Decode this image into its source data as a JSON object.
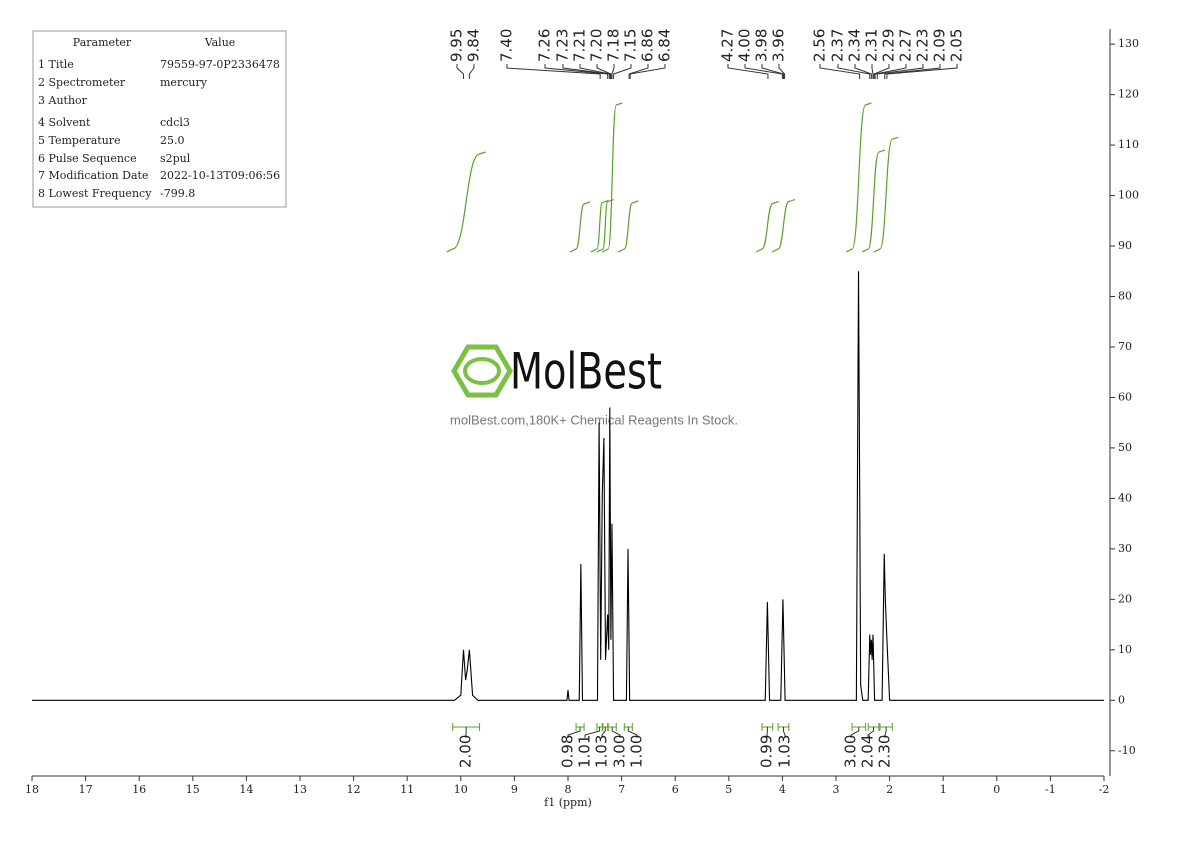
{
  "parameters": {
    "header": [
      "Parameter",
      "Value"
    ],
    "rows": [
      [
        "1 Title",
        "79559-97-0P2336478"
      ],
      [
        "2 Spectrometer",
        "mercury"
      ],
      [
        "3 Author"
      ],
      [
        "4 Solvent",
        "cdcl3"
      ],
      [
        "5 Temperature",
        "25.0"
      ],
      [
        "6 Pulse Sequence",
        "s2pul"
      ],
      [
        "7 Modification Date",
        "2022-10-13T09:06:56"
      ],
      [
        "8 Lowest Frequency",
        "-799.8"
      ]
    ]
  },
  "watermark": {
    "title": "MolBest",
    "subtitle": "molBest.com,180K+ Chemical Reagents In Stock."
  },
  "chart_data": {
    "type": "line",
    "x_label": "f1 (ppm)",
    "color": "#000000",
    "integral_color": "#5aa02c",
    "x": [
      18,
      10.12,
      10.0,
      9.95,
      9.91,
      9.88,
      9.84,
      9.78,
      9.68,
      8.02,
      8.0,
      7.98,
      7.79,
      7.76,
      7.73,
      7.45,
      7.42,
      7.39,
      7.36,
      7.33,
      7.3,
      7.26,
      7.24,
      7.22,
      7.2,
      7.18,
      7.15,
      6.91,
      6.88,
      6.85,
      4.32,
      4.28,
      4.24,
      4.03,
      3.99,
      3.95,
      2.62,
      2.58,
      2.56,
      2.54,
      2.5,
      2.4,
      2.37,
      2.355,
      2.34,
      2.325,
      2.31,
      2.28,
      2.14,
      2.1,
      2.08,
      2.05,
      2.0,
      -2
    ],
    "values": [
      0,
      0,
      1,
      10,
      4,
      6,
      10,
      1,
      0,
      0,
      2,
      0,
      0,
      27,
      0,
      0,
      55,
      8,
      41,
      52,
      8,
      17,
      10,
      58,
      12,
      35,
      0,
      0,
      30,
      0,
      0,
      19.5,
      0,
      0,
      20,
      0,
      0,
      85,
      46,
      3,
      0,
      0,
      13,
      9,
      12,
      8,
      13,
      0,
      0,
      29,
      20,
      12,
      0,
      0
    ],
    "xlim": [
      18,
      -2
    ],
    "xticks": [
      18,
      17,
      16,
      15,
      14,
      13,
      12,
      11,
      10,
      9,
      8,
      7,
      6,
      5,
      4,
      3,
      2,
      1,
      0,
      -1,
      -2
    ],
    "ylim": [
      -15,
      133
    ],
    "yticks": [
      -10,
      0,
      10,
      20,
      30,
      40,
      50,
      60,
      70,
      80,
      90,
      100,
      110,
      120,
      130
    ],
    "peak_labels": [
      {
        "value": 9.95,
        "label": "9.95"
      },
      {
        "value": 9.84,
        "label": "9.84"
      },
      {
        "value": 7.4,
        "label": "7.40"
      },
      {
        "value": 7.26,
        "label": "7.26"
      },
      {
        "value": 7.23,
        "label": "7.23"
      },
      {
        "value": 7.21,
        "label": "7.21"
      },
      {
        "value": 7.2,
        "label": "7.20"
      },
      {
        "value": 7.18,
        "label": "7.18"
      },
      {
        "value": 7.15,
        "label": "7.15"
      },
      {
        "value": 6.86,
        "label": "6.86"
      },
      {
        "value": 6.84,
        "label": "6.84"
      },
      {
        "value": 4.27,
        "label": "4.27"
      },
      {
        "value": 4.0,
        "label": "4.00"
      },
      {
        "value": 3.98,
        "label": "3.98"
      },
      {
        "value": 3.96,
        "label": "3.96"
      },
      {
        "value": 2.56,
        "label": "2.56"
      },
      {
        "value": 2.37,
        "label": "2.37"
      },
      {
        "value": 2.34,
        "label": "2.34"
      },
      {
        "value": 2.31,
        "label": "2.31"
      },
      {
        "value": 2.29,
        "label": "2.29"
      },
      {
        "value": 2.27,
        "label": "2.27"
      },
      {
        "value": 2.23,
        "label": "2.23"
      },
      {
        "value": 2.09,
        "label": "2.09"
      },
      {
        "value": 2.05,
        "label": "2.05"
      }
    ],
    "integrals": [
      {
        "value": 2,
        "label": "2.00",
        "from": 10.15,
        "to": 9.65
      },
      {
        "value": 0.98,
        "label": "0.98",
        "from": 7.85,
        "to": 7.7
      },
      {
        "value": 1.01,
        "label": "1.01",
        "from": 7.46,
        "to": 7.36
      },
      {
        "value": 1.03,
        "label": "1.03",
        "from": 7.35,
        "to": 7.26
      },
      {
        "value": 3,
        "label": "3.00",
        "from": 7.25,
        "to": 7.1
      },
      {
        "value": 1,
        "label": "1.00",
        "from": 6.95,
        "to": 6.8
      },
      {
        "value": 0.99,
        "label": "0.99",
        "from": 4.38,
        "to": 4.18
      },
      {
        "value": 1.03,
        "label": "1.03",
        "from": 4.08,
        "to": 3.88
      },
      {
        "value": 3,
        "label": "3.00",
        "from": 2.7,
        "to": 2.45
      },
      {
        "value": 2.04,
        "label": "2.04",
        "from": 2.4,
        "to": 2.2
      },
      {
        "value": 2.3,
        "label": "2.30",
        "from": 2.18,
        "to": 1.95
      }
    ]
  }
}
